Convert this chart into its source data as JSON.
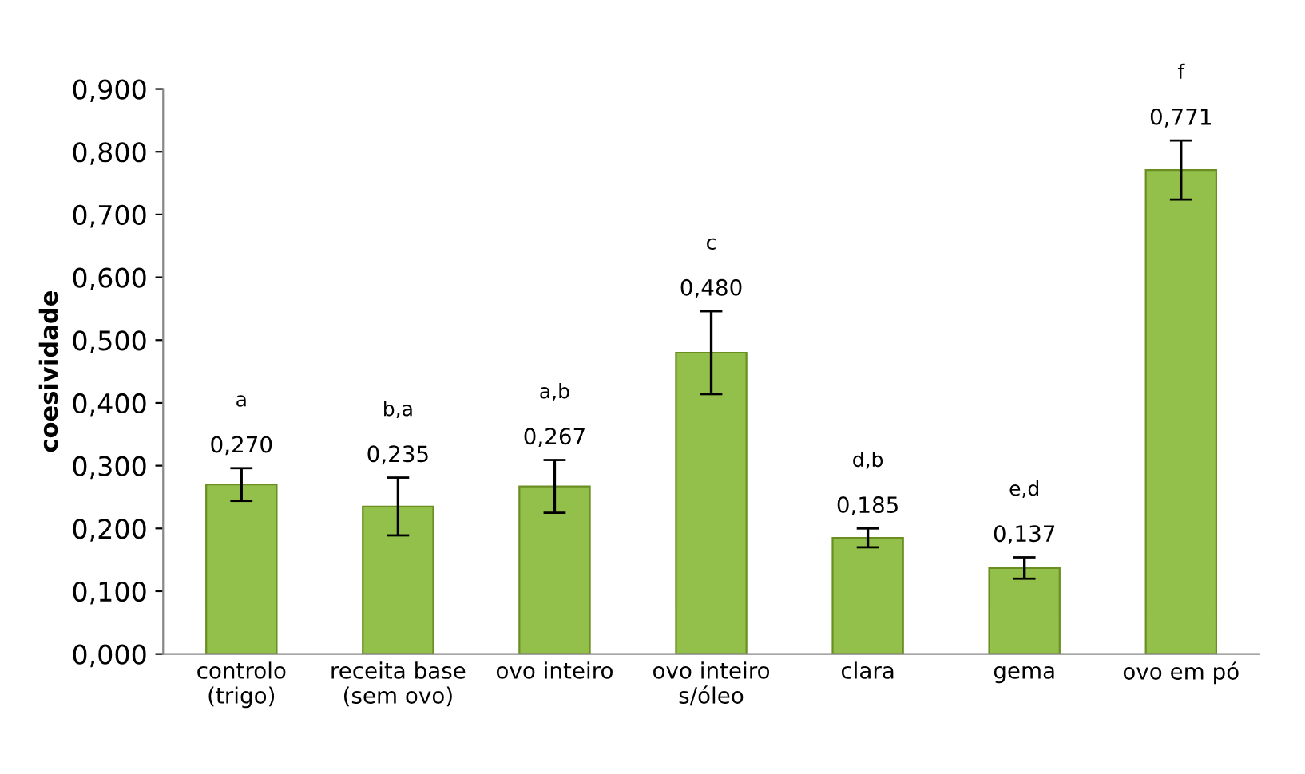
{
  "chart_data": {
    "type": "bar",
    "ylabel": "coesividade",
    "categories": [
      "controlo\n(trigo)",
      "receita base\n(sem ovo)",
      "ovo inteiro",
      "ovo inteiro\ns/óleo",
      "clara",
      "gema",
      "ovo em pó"
    ],
    "values": [
      0.27,
      0.235,
      0.267,
      0.48,
      0.185,
      0.137,
      0.771
    ],
    "errors": [
      0.026,
      0.046,
      0.042,
      0.066,
      0.015,
      0.017,
      0.047
    ],
    "value_labels": [
      "0,270",
      "0,235",
      "0,267",
      "0,480",
      "0,185",
      "0,137",
      "0,771"
    ],
    "color": "#92c04a",
    "ylim": [
      0,
      0.9
    ],
    "yticks": [
      {
        "value": 0,
        "label": "0,000"
      },
      {
        "value": 0.1,
        "label": "0,100"
      },
      {
        "value": 0.2,
        "label": "0,200"
      },
      {
        "value": 0.3,
        "label": "0,300"
      },
      {
        "value": 0.4,
        "label": "0,400"
      },
      {
        "value": 0.5,
        "label": "0,500"
      },
      {
        "value": 0.6,
        "label": "0,600"
      },
      {
        "value": 0.7,
        "label": "0,700"
      },
      {
        "value": 0.8,
        "label": "0,800"
      },
      {
        "value": 0.9,
        "label": "0,900"
      }
    ],
    "annotations": [
      "a",
      "b,a",
      "a,b",
      "c",
      "d,b",
      "e,d",
      "f"
    ]
  }
}
